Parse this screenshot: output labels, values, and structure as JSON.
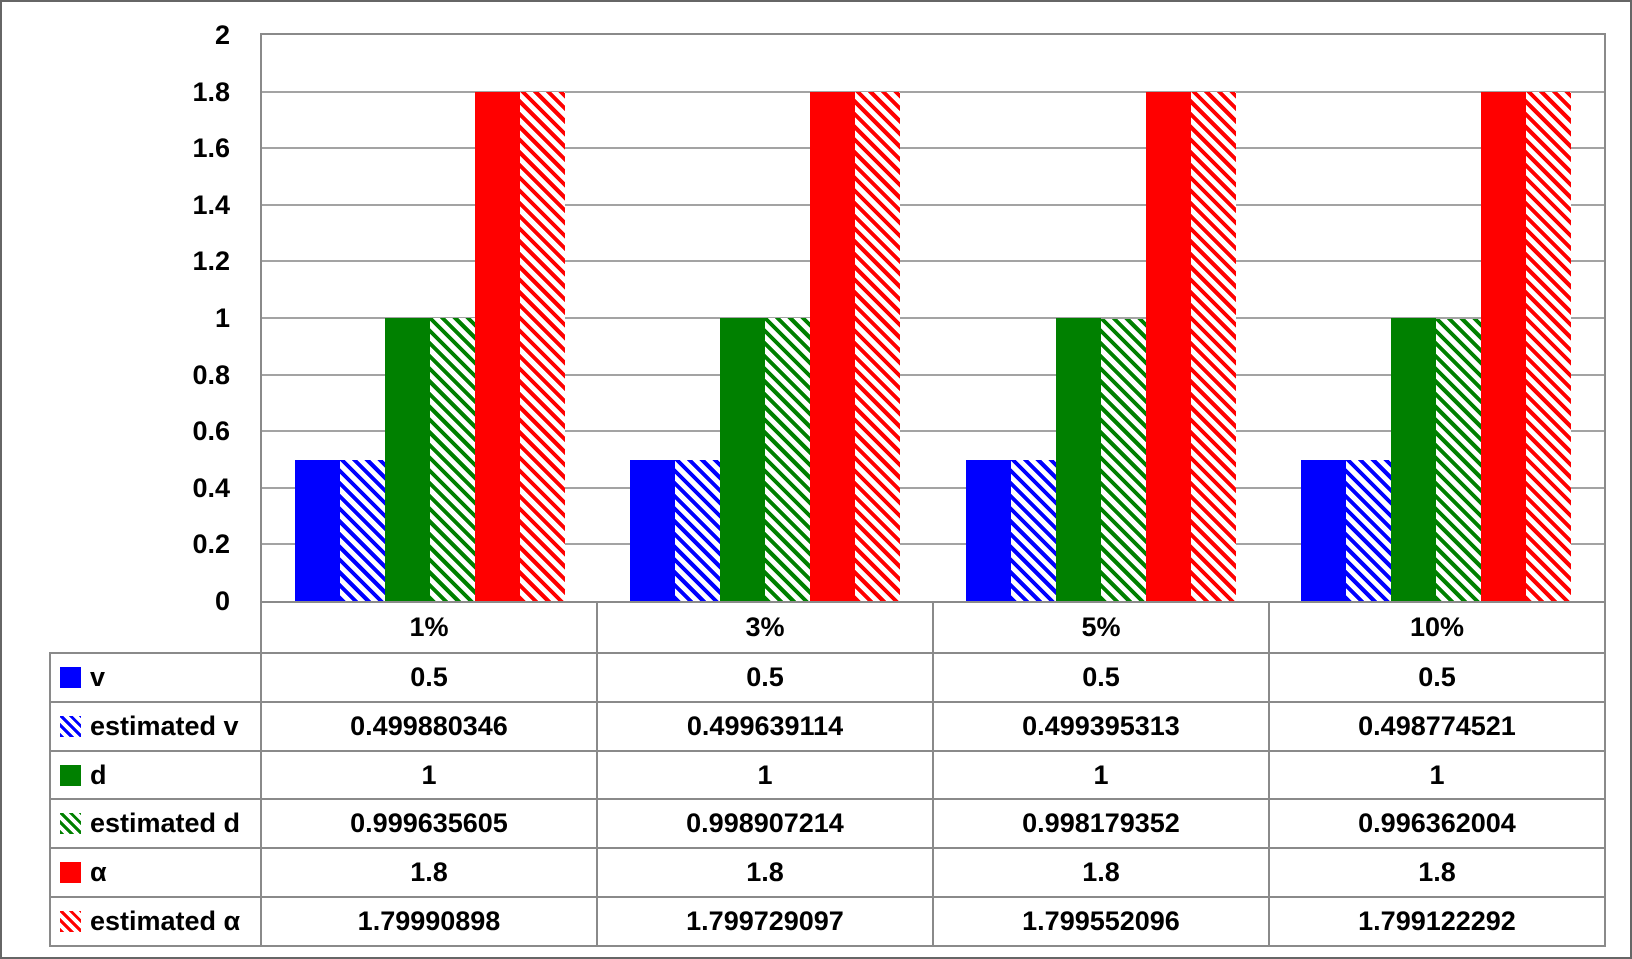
{
  "chart_data": {
    "type": "bar",
    "categories": [
      "1%",
      "3%",
      "5%",
      "10%"
    ],
    "series": [
      {
        "name": "v",
        "color": "#0000ff",
        "pattern": "solid",
        "values": [
          "0.5",
          "0.5",
          "0.5",
          "0.5"
        ]
      },
      {
        "name": "estimated v",
        "color": "#0000ff",
        "pattern": "hatched",
        "values": [
          "0.499880346",
          "0.499639114",
          "0.499395313",
          "0.498774521"
        ]
      },
      {
        "name": "d",
        "color": "#008000",
        "pattern": "solid",
        "values": [
          "1",
          "1",
          "1",
          "1"
        ]
      },
      {
        "name": "estimated d",
        "color": "#008000",
        "pattern": "hatched",
        "values": [
          "0.999635605",
          "0.998907214",
          "0.998179352",
          "0.996362004"
        ]
      },
      {
        "name": "α",
        "color": "#ff0000",
        "pattern": "solid",
        "values": [
          "1.8",
          "1.8",
          "1.8",
          "1.8"
        ]
      },
      {
        "name": "estimated α",
        "color": "#ff0000",
        "pattern": "hatched",
        "values": [
          "1.79990898",
          "1.799729097",
          "1.799552096",
          "1.799122292"
        ]
      }
    ],
    "yticks": [
      "2",
      "1.8",
      "1.6",
      "1.4",
      "1.2",
      "1",
      "0.8",
      "0.6",
      "0.4",
      "0.2",
      "0"
    ],
    "ylim": [
      0,
      2
    ],
    "ytick_step": 0.2,
    "grid": true,
    "legend_position": "table-left",
    "xlabel": "",
    "ylabel": ""
  }
}
